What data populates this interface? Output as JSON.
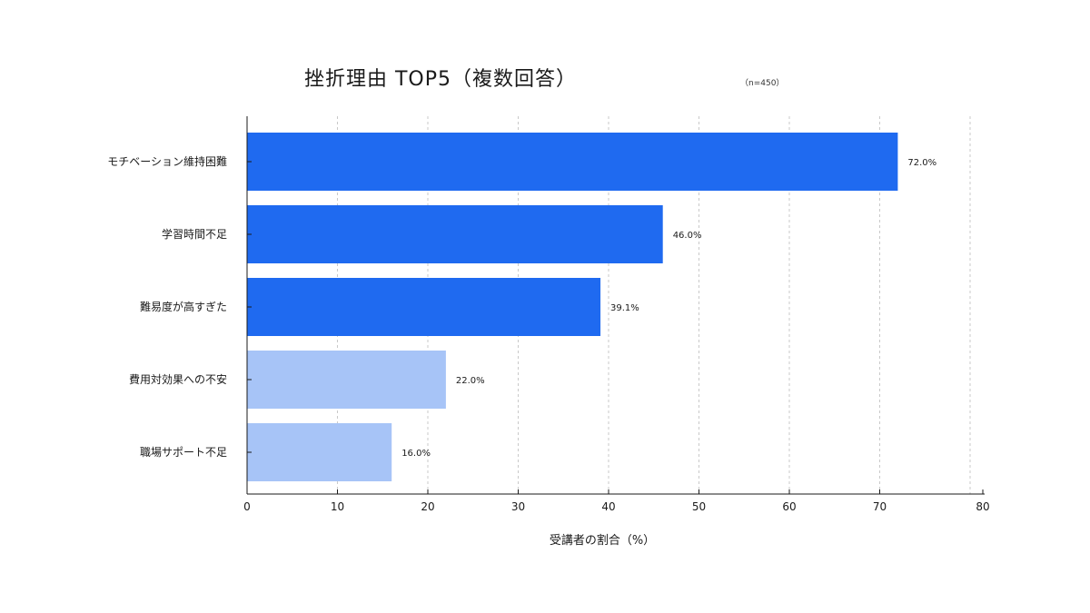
{
  "chart_data": {
    "type": "bar",
    "orientation": "horizontal",
    "title": "挫折理由 TOP5（複数回答）",
    "subtitle": "（n=450）",
    "xlabel": "受講者の割合（%）",
    "ylabel": "",
    "xlim": [
      0,
      80
    ],
    "xticks": [
      0,
      10,
      20,
      30,
      40,
      50,
      60,
      70,
      80
    ],
    "grid": "vertical dashed",
    "categories": [
      "モチベーション維持困難",
      "学習時間不足",
      "難易度が高すぎた",
      "費用対効果への不安",
      "職場サポート不足"
    ],
    "values": [
      72.0,
      46.0,
      39.1,
      22.0,
      16.0
    ],
    "data_labels": [
      "72.0%",
      "46.0%",
      "39.1%",
      "22.0%",
      "16.0%"
    ],
    "colors": [
      "#1f6af0",
      "#1f6af0",
      "#1f6af0",
      "#a7c4f7",
      "#a7c4f7"
    ]
  }
}
